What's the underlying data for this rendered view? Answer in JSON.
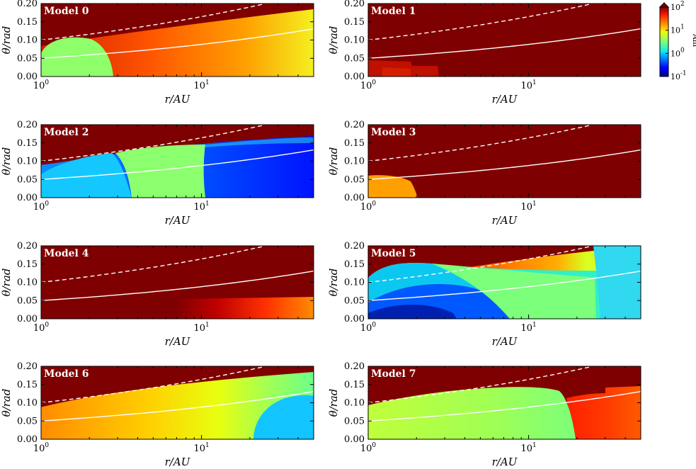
{
  "chart_data": {
    "type": "heatmap",
    "xlabel": "r/AU",
    "ylabel": "θ/rad",
    "x_scale": "log",
    "xlim": [
      1,
      50
    ],
    "ylim": [
      0.0,
      0.2
    ],
    "x_ticks": [
      {
        "value": 1,
        "base": "10",
        "exp": "0"
      },
      {
        "value": 10,
        "base": "10",
        "exp": "1"
      }
    ],
    "y_ticks": [
      "0.00",
      "0.05",
      "0.10",
      "0.15",
      "0.20"
    ],
    "colorbar": {
      "label": "Am",
      "scale": "log",
      "range": [
        0.1,
        100
      ],
      "colormap": "jet",
      "extend": "max",
      "ticks": [
        {
          "value": 100,
          "base": "10",
          "exp": "2"
        },
        {
          "value": 10,
          "base": "10",
          "exp": "1"
        },
        {
          "value": 1,
          "base": "10",
          "exp": "0"
        },
        {
          "value": 0.1,
          "base": "10",
          "exp": "-1"
        }
      ]
    },
    "overlays": {
      "solid_line": "white curve from θ≈0.05 at r=1 AU to θ≈0.13 at r=50 AU",
      "dashed_line": "white dashed curve from θ≈0.10 at r=1 AU to θ≈0.20 at r≈25 AU"
    },
    "panels": [
      {
        "title": "Model 0"
      },
      {
        "title": "Model 1"
      },
      {
        "title": "Model 2"
      },
      {
        "title": "Model 3"
      },
      {
        "title": "Model 4"
      },
      {
        "title": "Model 5"
      },
      {
        "title": "Model 6"
      },
      {
        "title": "Model 7"
      }
    ]
  }
}
